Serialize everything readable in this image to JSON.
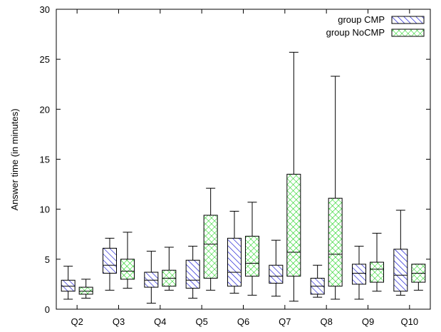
{
  "chart_data": {
    "type": "boxplot",
    "title": "",
    "xlabel": "",
    "ylabel": "Answer time (in minutes)",
    "ylim": [
      0,
      30
    ],
    "yticks": [
      0,
      5,
      10,
      15,
      20,
      25,
      30
    ],
    "grid": false,
    "legend_position": "top-right",
    "categories": [
      "Q2",
      "Q3",
      "Q4",
      "Q5",
      "Q6",
      "Q7",
      "Q8",
      "Q9",
      "Q10"
    ],
    "series": [
      {
        "name": "group CMP",
        "color": "#0000cc",
        "pattern": "diagonal-hatch",
        "boxes": [
          {
            "min": 1.0,
            "q1": 1.8,
            "median": 2.3,
            "q3": 2.9,
            "max": 4.3
          },
          {
            "min": 1.9,
            "q1": 3.6,
            "median": 4.4,
            "q3": 6.1,
            "max": 7.1
          },
          {
            "min": 0.6,
            "q1": 2.2,
            "median": 2.9,
            "q3": 3.7,
            "max": 5.8
          },
          {
            "min": 1.1,
            "q1": 2.1,
            "median": 2.9,
            "q3": 4.9,
            "max": 6.3
          },
          {
            "min": 1.6,
            "q1": 2.3,
            "median": 3.7,
            "q3": 7.1,
            "max": 9.8
          },
          {
            "min": 1.3,
            "q1": 2.6,
            "median": 3.3,
            "q3": 4.4,
            "max": 6.9
          },
          {
            "min": 1.2,
            "q1": 1.5,
            "median": 2.3,
            "q3": 3.1,
            "max": 4.4
          },
          {
            "min": 1.0,
            "q1": 2.5,
            "median": 3.6,
            "q3": 4.5,
            "max": 6.3
          },
          {
            "min": 1.4,
            "q1": 1.8,
            "median": 3.4,
            "q3": 6.0,
            "max": 9.9
          }
        ]
      },
      {
        "name": "group NoCMP",
        "color": "#00cc00",
        "pattern": "cross-hatch",
        "boxes": [
          {
            "min": 1.1,
            "q1": 1.5,
            "median": 1.8,
            "q3": 2.2,
            "max": 3.0
          },
          {
            "min": 2.1,
            "q1": 3.0,
            "median": 3.8,
            "q3": 5.0,
            "max": 7.7
          },
          {
            "min": 1.9,
            "q1": 2.3,
            "median": 3.1,
            "q3": 3.9,
            "max": 6.2
          },
          {
            "min": 1.9,
            "q1": 3.1,
            "median": 6.5,
            "q3": 9.4,
            "max": 12.1
          },
          {
            "min": 1.4,
            "q1": 3.3,
            "median": 4.6,
            "q3": 7.3,
            "max": 10.7
          },
          {
            "min": 0.8,
            "q1": 3.3,
            "median": 5.7,
            "q3": 13.5,
            "max": 25.7
          },
          {
            "min": 1.0,
            "q1": 2.3,
            "median": 5.5,
            "q3": 11.1,
            "max": 23.3
          },
          {
            "min": 1.8,
            "q1": 2.7,
            "median": 4.0,
            "q3": 4.7,
            "max": 7.6
          },
          {
            "min": 1.9,
            "q1": 2.7,
            "median": 3.6,
            "q3": 4.5,
            "max": 4.5
          }
        ]
      }
    ]
  }
}
